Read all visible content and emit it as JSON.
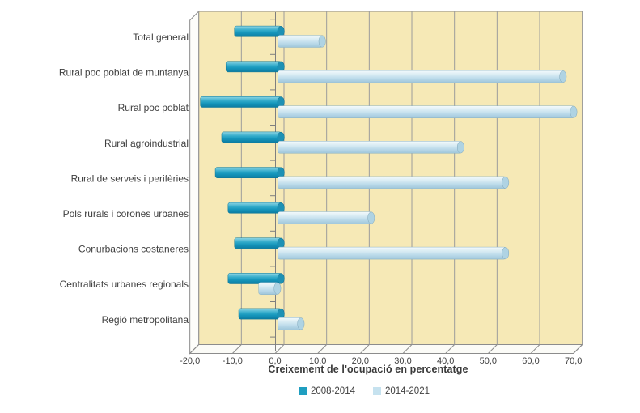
{
  "chart_data": {
    "type": "bar",
    "orientation": "horizontal",
    "style": "3d-cylinder",
    "categories": [
      "Total general",
      "Rural poc poblat de muntanya",
      "Rural poc poblat",
      "Rural agroindustrial",
      "Rural de serveis i perifèries",
      "Pols rurals i corones urbanes",
      "Conurbacions costaneres",
      "Centralitats urbanes regionals",
      "Regió metropolitana"
    ],
    "series": [
      {
        "name": "2008-2014",
        "color": "#1f9ec0",
        "values": [
          -11,
          -13,
          -19,
          -14,
          -15.5,
          -12.5,
          -11,
          -12.5,
          -10
        ]
      },
      {
        "name": "2014-2021",
        "color": "#c6e2ef",
        "values": [
          10.5,
          67,
          69.5,
          43,
          53.5,
          22,
          53.5,
          -4.5,
          5.5
        ]
      }
    ],
    "xlabel": "Creixement de l'ocupació en percentatge",
    "ylabel": "",
    "xlim": [
      -20,
      70
    ],
    "x_tick_step": 10,
    "x_tick_labels": [
      "-20,0",
      "-10,0",
      "0,0",
      "10,0",
      "20,0",
      "30,0",
      "40,0",
      "50,0",
      "60,0",
      "70,0"
    ],
    "grid": true,
    "legend_position": "bottom",
    "wall_color": "#f6e9b6",
    "gridline_color": "#9c9c9c"
  }
}
